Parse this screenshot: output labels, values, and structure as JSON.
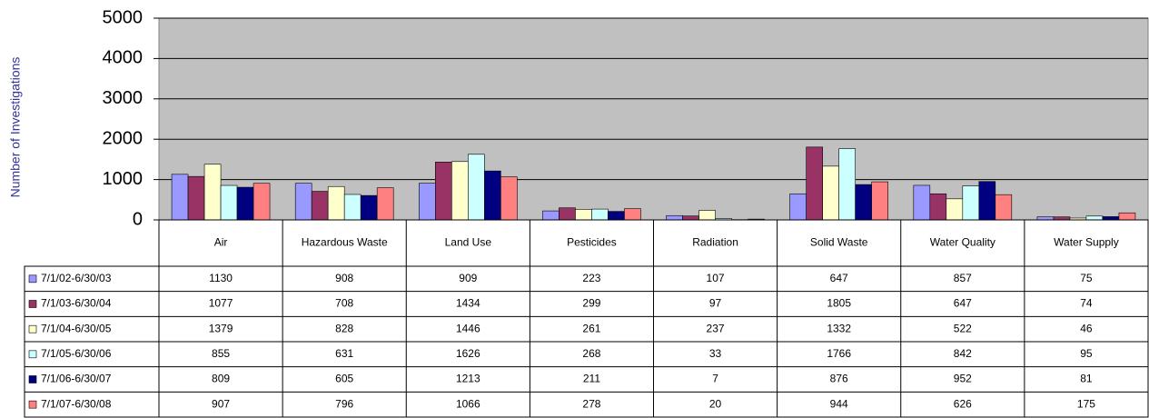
{
  "chart_data": {
    "type": "bar",
    "y_label": "Number of Investigations",
    "categories": [
      "Air",
      "Hazardous Waste",
      "Land Use",
      "Pesticides",
      "Radiation",
      "Solid Waste",
      "Water Quality",
      "Water Supply"
    ],
    "series": [
      {
        "name": "7/1/02-6/30/03",
        "color": "#9999ff",
        "values": [
          1130,
          908,
          909,
          223,
          107,
          647,
          857,
          75
        ]
      },
      {
        "name": "7/1/03-6/30/04",
        "color": "#993366",
        "values": [
          1077,
          708,
          1434,
          299,
          97,
          1805,
          647,
          74
        ]
      },
      {
        "name": "7/1/04-6/30/05",
        "color": "#ffffcc",
        "values": [
          1379,
          828,
          1446,
          261,
          237,
          1332,
          522,
          46
        ]
      },
      {
        "name": "7/1/05-6/30/06",
        "color": "#ccffff",
        "values": [
          855,
          631,
          1626,
          268,
          33,
          1766,
          842,
          95
        ]
      },
      {
        "name": "7/1/06-6/30/07",
        "color": "#000080",
        "values": [
          809,
          605,
          1213,
          211,
          7,
          876,
          952,
          81
        ]
      },
      {
        "name": "7/1/07-6/30/08",
        "color": "#ff8080",
        "values": [
          907,
          796,
          1066,
          278,
          20,
          944,
          626,
          175
        ]
      }
    ],
    "ylim": [
      0,
      5000
    ],
    "yticks": [
      0,
      1000,
      2000,
      3000,
      4000,
      5000
    ],
    "grid": true
  }
}
